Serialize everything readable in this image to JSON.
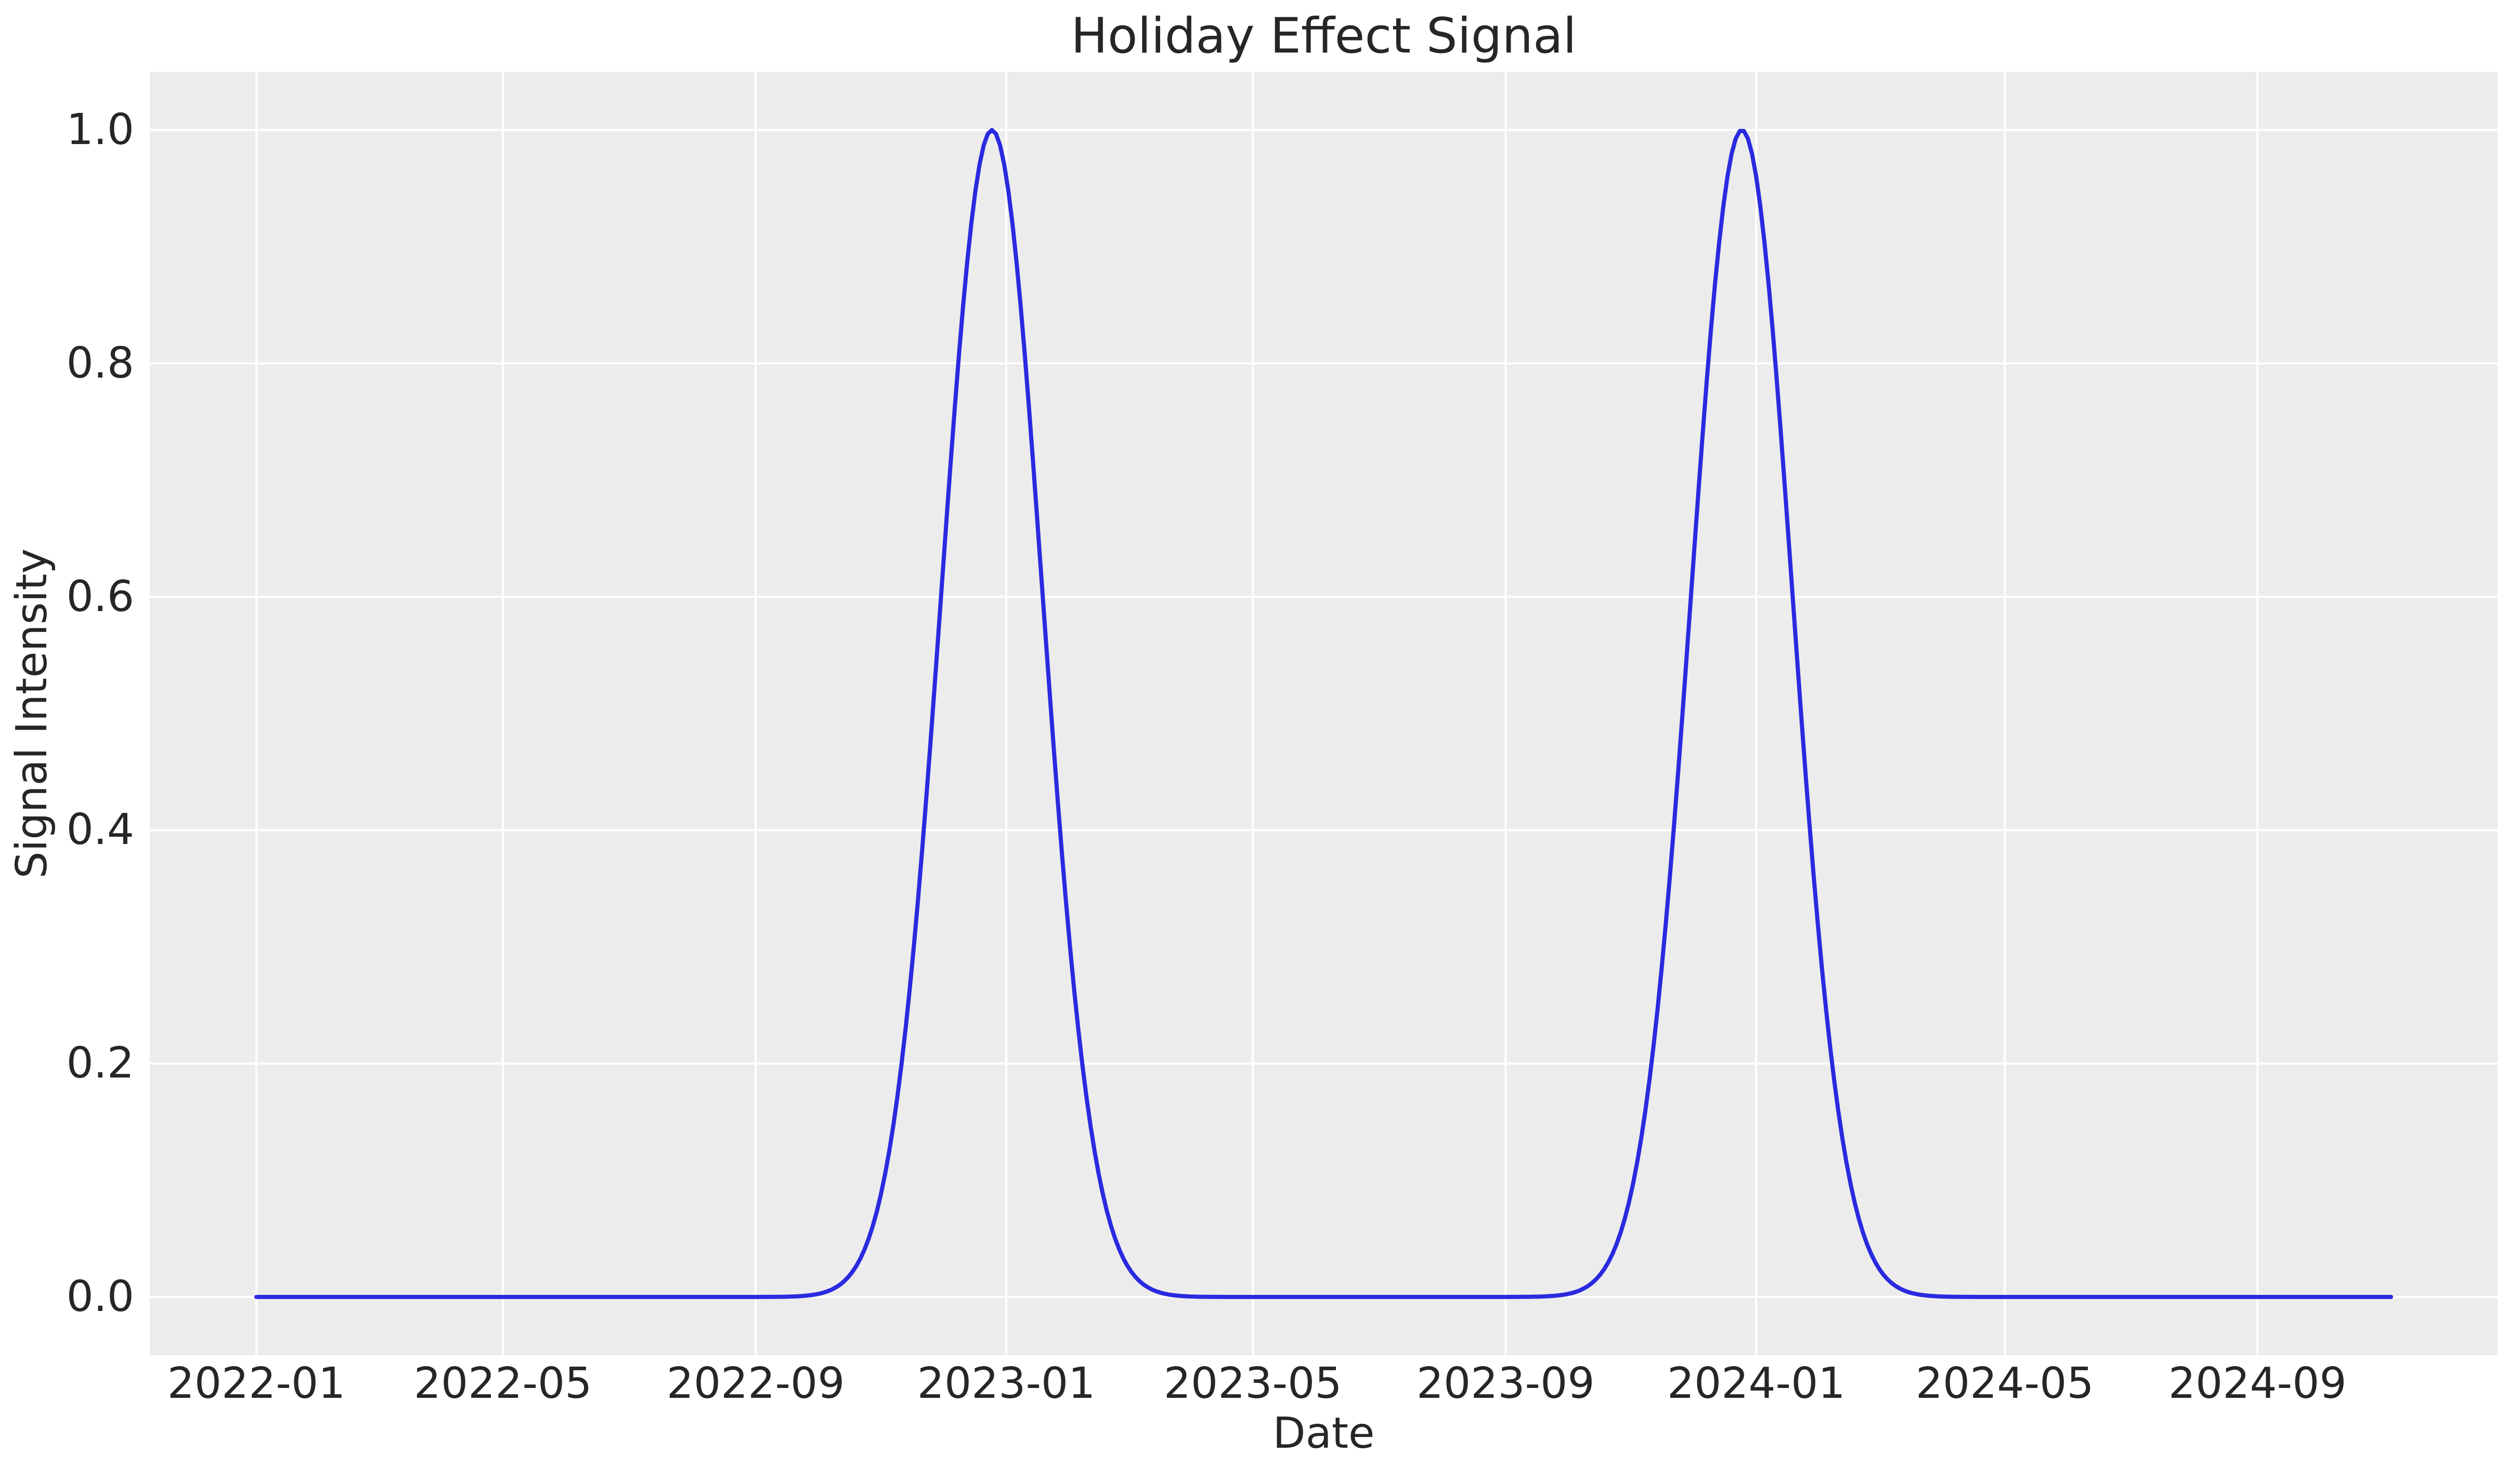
{
  "figure": {
    "title": "Holiday Effect Signal"
  },
  "chart_data": {
    "type": "line",
    "title": "Holiday Effect Signal",
    "xlabel": "Date",
    "ylabel": "Signal Intensity",
    "x_start": "2022-01-01",
    "x_end": "2024-11-05",
    "x_tick_labels": [
      "2022-01",
      "2022-05",
      "2022-09",
      "2023-01",
      "2023-05",
      "2023-09",
      "2024-01",
      "2024-05",
      "2024-09"
    ],
    "x_tick_dates": [
      "2022-01-01",
      "2022-05-01",
      "2022-09-01",
      "2023-01-01",
      "2023-05-01",
      "2023-09-01",
      "2024-01-01",
      "2024-05-01",
      "2024-09-01"
    ],
    "y_ticks": [
      0.0,
      0.2,
      0.4,
      0.6,
      0.8,
      1.0
    ],
    "y_tick_labels": [
      "0.0",
      "0.2",
      "0.4",
      "0.6",
      "0.8",
      "1.0"
    ],
    "ylim": [
      0.0,
      1.0
    ],
    "grid": true,
    "legend": false,
    "series": [
      {
        "name": "holiday-effect-signal",
        "shape": "gaussian_bumps",
        "baseline": 0.0,
        "amplitude": 1.0,
        "sigma_days": 24.5,
        "peak_dates": [
          "2022-12-25",
          "2023-12-25"
        ],
        "peak_value": 1.0,
        "sample_step_days": 2,
        "color": "#2a2ae0",
        "linewidth": 8
      }
    ],
    "colors": {
      "plot_background": "#ececec",
      "figure_background": "#ffffff",
      "gridline": "#ffffff",
      "text": "#262626",
      "line": "#2a2ae0"
    }
  }
}
